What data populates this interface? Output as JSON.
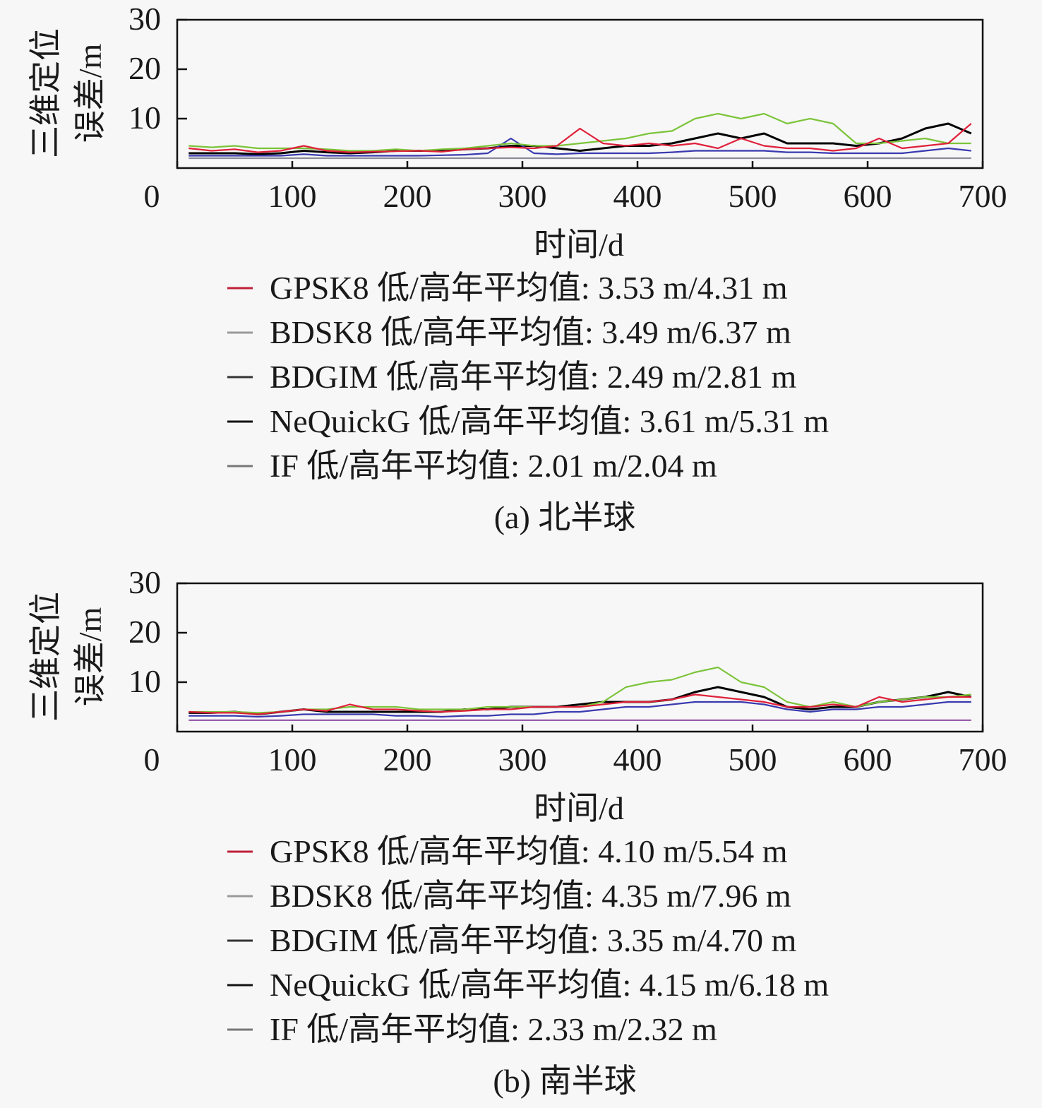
{
  "chart_data": [
    {
      "type": "line",
      "caption": "(a) 北半球",
      "xlabel": "时间/d",
      "ylabel_lines": [
        "三维定位",
        "误差/m"
      ],
      "xlim": [
        0,
        700
      ],
      "ylim": [
        0,
        30
      ],
      "xticks": [
        0,
        100,
        200,
        300,
        400,
        500,
        600,
        700
      ],
      "yticks": [
        0,
        10,
        20,
        30
      ],
      "x": [
        10,
        30,
        50,
        70,
        90,
        110,
        130,
        150,
        170,
        190,
        210,
        230,
        250,
        270,
        290,
        310,
        330,
        350,
        370,
        390,
        410,
        430,
        450,
        470,
        490,
        510,
        530,
        550,
        570,
        590,
        610,
        630,
        650,
        670,
        690
      ],
      "legend_placement": "below",
      "series": [
        {
          "name": "GPSK8",
          "legend": "GPSK8 低/高年平均值: 3.53 m/4.31 m",
          "color": "#e0203a",
          "swatch": "#c0203a",
          "values": [
            4,
            3.5,
            3.8,
            3.2,
            3.5,
            4.5,
            3.5,
            3.2,
            3.3,
            3.4,
            3.5,
            3.3,
            3.8,
            4,
            4.2,
            4,
            4.5,
            8,
            5,
            4.5,
            5,
            4.5,
            5,
            4,
            6,
            4.5,
            4,
            4,
            3.5,
            4,
            6,
            4,
            4.5,
            5,
            9
          ]
        },
        {
          "name": "BDSK8",
          "legend": "BDSK8 低/高年平均值: 3.49 m/6.37 m",
          "color": "#7cc43a",
          "swatch": "#9a9a9a",
          "values": [
            4.5,
            4.2,
            4.5,
            4,
            4,
            4,
            3.8,
            3.5,
            3.5,
            3.8,
            3.5,
            3.8,
            4,
            4.5,
            5,
            4.5,
            4.5,
            5,
            5.5,
            6,
            7,
            7.5,
            10,
            11,
            10,
            11,
            9,
            10,
            9,
            5,
            5,
            5.5,
            6,
            5,
            5
          ]
        },
        {
          "name": "BDGIM",
          "legend": "BDGIM 低/高年平均值: 2.49 m/2.81 m",
          "color": "#3a3ab0",
          "swatch": "#333333",
          "values": [
            2.5,
            2.5,
            2.5,
            2.5,
            2.5,
            2.8,
            2.5,
            2.5,
            2.5,
            2.5,
            2.5,
            2.6,
            2.7,
            3,
            6,
            3,
            2.8,
            3,
            3,
            3,
            3,
            3.2,
            3.5,
            3.5,
            3.5,
            3.5,
            3.2,
            3.2,
            3,
            3,
            3,
            3,
            3.5,
            4,
            3.5
          ]
        },
        {
          "name": "NeQuickG",
          "legend": "NeQuickG 低/高年平均值: 3.61 m/5.31 m",
          "color": "#000000",
          "swatch": "#111111",
          "values": [
            3,
            3,
            3,
            2.8,
            3,
            3.5,
            3.2,
            3,
            3.2,
            3.5,
            3.5,
            3.5,
            3.8,
            4,
            4.5,
            4.5,
            4,
            3.5,
            4,
            4.5,
            4.5,
            5,
            6,
            7,
            6,
            7,
            5,
            5,
            5,
            4.5,
            5,
            6,
            8,
            9,
            7
          ]
        },
        {
          "name": "IF",
          "legend": "IF 低/高年平均值: 2.01 m/2.04 m",
          "color": "#8a8a9a",
          "swatch": "#777777",
          "values": [
            2,
            2,
            2,
            2,
            2,
            2,
            2,
            2,
            2,
            2,
            2,
            2,
            2,
            2,
            2,
            2,
            2,
            2,
            2,
            2,
            2,
            2,
            2,
            2,
            2,
            2,
            2,
            2,
            2,
            2,
            2,
            2,
            2,
            2,
            2
          ]
        }
      ]
    },
    {
      "type": "line",
      "caption": "(b) 南半球",
      "xlabel": "时间/d",
      "ylabel_lines": [
        "三维定位",
        "误差/m"
      ],
      "xlim": [
        0,
        700
      ],
      "ylim": [
        0,
        30
      ],
      "xticks": [
        0,
        100,
        200,
        300,
        400,
        500,
        600,
        700
      ],
      "yticks": [
        0,
        10,
        20,
        30
      ],
      "x": [
        10,
        30,
        50,
        70,
        90,
        110,
        130,
        150,
        170,
        190,
        210,
        230,
        250,
        270,
        290,
        310,
        330,
        350,
        370,
        390,
        410,
        430,
        450,
        470,
        490,
        510,
        530,
        550,
        570,
        590,
        610,
        630,
        650,
        670,
        690
      ],
      "legend_placement": "below",
      "series": [
        {
          "name": "GPSK8",
          "legend": "GPSK8 低/高年平均值: 4.10 m/5.54 m",
          "color": "#e0203a",
          "swatch": "#c0203a",
          "values": [
            4,
            3.8,
            3.8,
            3.5,
            4,
            4.5,
            4.2,
            5.5,
            4.5,
            4.5,
            4.2,
            4,
            4.2,
            4.5,
            4.5,
            5,
            5,
            5,
            5.5,
            6,
            6,
            6.5,
            7.5,
            7,
            6.5,
            6,
            5,
            5,
            5.5,
            5,
            7,
            6,
            6.5,
            7,
            7
          ]
        },
        {
          "name": "BDSK8",
          "legend": "BDSK8 低/高年平均值: 4.35 m/7.96 m",
          "color": "#7cc43a",
          "swatch": "#9a9a9a",
          "values": [
            4,
            4,
            4,
            3.8,
            4,
            4.5,
            4.5,
            5,
            5,
            5,
            4.5,
            4.5,
            4.5,
            5,
            5,
            5,
            5,
            5,
            6,
            9,
            10,
            10.5,
            12,
            13,
            10,
            9,
            6,
            5,
            6,
            5,
            6,
            6.5,
            7,
            7,
            7.5
          ]
        },
        {
          "name": "BDGIM",
          "legend": "BDGIM 低/高年平均值: 3.35 m/4.70 m",
          "color": "#3a3ab0",
          "swatch": "#333333",
          "values": [
            3.2,
            3.2,
            3.2,
            3,
            3.2,
            3.5,
            3.5,
            3.5,
            3.5,
            3.2,
            3.2,
            3,
            3.2,
            3.2,
            3.5,
            3.5,
            4,
            4,
            4.5,
            5,
            5,
            5.5,
            6,
            6,
            6,
            5.5,
            4.5,
            4,
            4.5,
            4.5,
            5,
            5,
            5.5,
            6,
            6
          ]
        },
        {
          "name": "NeQuickG",
          "legend": "NeQuickG 低/高年平均值: 4.15 m/6.18 m",
          "color": "#000000",
          "swatch": "#111111",
          "values": [
            3.8,
            3.8,
            4,
            3.5,
            4,
            4.5,
            4,
            4,
            4,
            4,
            4,
            4,
            4.5,
            4.5,
            5,
            5,
            5,
            5.5,
            6,
            6,
            6,
            6.5,
            8,
            9,
            8,
            7,
            5,
            4.5,
            5,
            5,
            6,
            6.5,
            7,
            8,
            7
          ]
        },
        {
          "name": "IF",
          "legend": "IF 低/高年平均值: 2.33 m/2.32 m",
          "color": "#9a60b0",
          "swatch": "#777777",
          "values": [
            2.3,
            2.3,
            2.3,
            2.3,
            2.3,
            2.3,
            2.3,
            2.3,
            2.3,
            2.3,
            2.3,
            2.3,
            2.3,
            2.3,
            2.3,
            2.3,
            2.3,
            2.3,
            2.3,
            2.3,
            2.3,
            2.3,
            2.3,
            2.3,
            2.3,
            2.3,
            2.3,
            2.3,
            2.3,
            2.3,
            2.3,
            2.3,
            2.3,
            2.3,
            2.3
          ]
        }
      ]
    }
  ]
}
